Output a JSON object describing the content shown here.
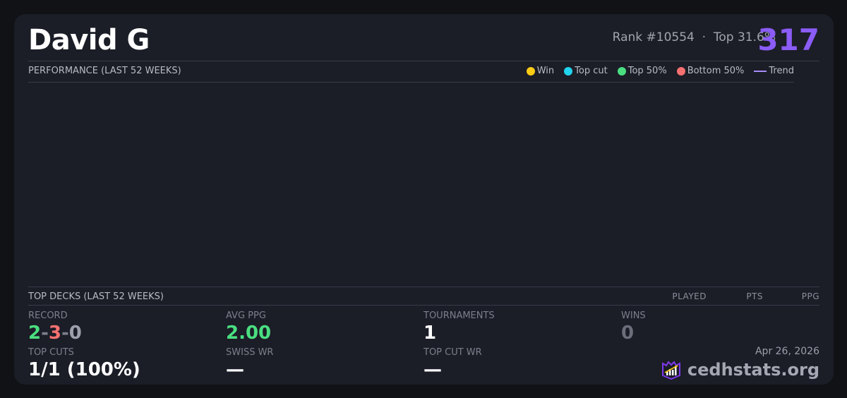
{
  "player": {
    "name": "David G",
    "rank": "Rank #10554",
    "dot": "·",
    "top": "Top 31.6%",
    "score": "317"
  },
  "performance": {
    "title": "PERFORMANCE (LAST 52 WEEKS)",
    "legend": [
      {
        "label": "Win",
        "color": "#facc15"
      },
      {
        "label": "Top cut",
        "color": "#22d3ee"
      },
      {
        "label": "Top 50%",
        "color": "#4ade80"
      },
      {
        "label": "Bottom 50%",
        "color": "#f87171"
      },
      {
        "label": "Trend",
        "color": "#a78bfa"
      }
    ]
  },
  "decks": {
    "title": "TOP DECKS (LAST 52 WEEKS)",
    "columns": [
      "PLAYED",
      "PTS",
      "PPG"
    ]
  },
  "stats": {
    "record": {
      "label": "RECORD",
      "wins": "2",
      "losses": "3",
      "draws": "0",
      "sep": "-"
    },
    "avg_ppg": {
      "label": "AVG PPG",
      "value": "2.00"
    },
    "tournaments": {
      "label": "TOURNAMENTS",
      "value": "1"
    },
    "wins": {
      "label": "WINS",
      "value": "0"
    },
    "top_cuts": {
      "label": "TOP CUTS",
      "value": "1/1 (100%)"
    },
    "swiss_wr": {
      "label": "SWISS WR",
      "value": "—"
    },
    "top_cut_wr": {
      "label": "TOP CUT WR",
      "value": "—"
    }
  },
  "footer": {
    "date": "Apr 26, 2026",
    "brand": "cedhstats.org"
  }
}
